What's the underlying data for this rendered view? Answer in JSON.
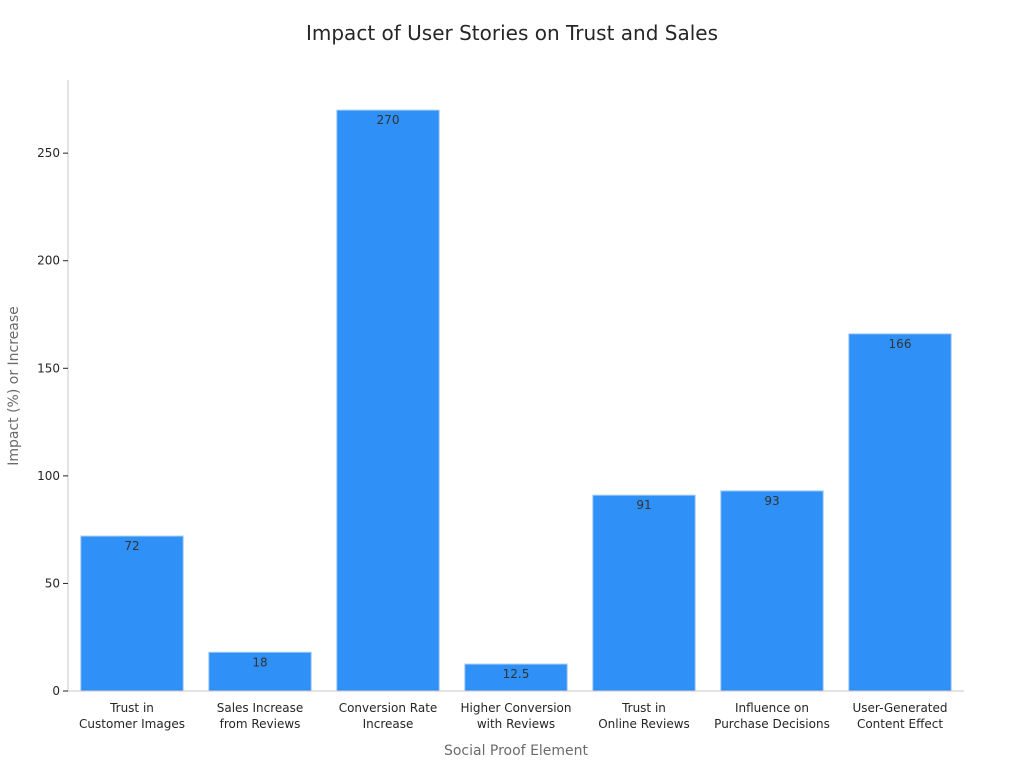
{
  "chart_data": {
    "type": "bar",
    "title": "Impact of User Stories on Trust and Sales",
    "xlabel": "Social Proof Element",
    "ylabel": "Impact (%) or Increase",
    "categories": [
      [
        "Trust in",
        "Customer Images"
      ],
      [
        "Sales Increase",
        "from Reviews"
      ],
      [
        "Conversion Rate",
        "Increase"
      ],
      [
        "Higher Conversion",
        "with Reviews"
      ],
      [
        "Trust in",
        "Online Reviews"
      ],
      [
        "Influence on",
        "Purchase Decisions"
      ],
      [
        "User-Generated",
        "Content Effect"
      ]
    ],
    "values": [
      72,
      18,
      270,
      12.5,
      91,
      93,
      166
    ],
    "data_labels": [
      "72",
      "18",
      "270",
      "12.5",
      "91",
      "93",
      "166"
    ],
    "ylim": [
      0,
      284
    ],
    "yticks": [
      0,
      50,
      100,
      150,
      200,
      250
    ],
    "grid": false,
    "bar_color": "#2f91f7"
  }
}
